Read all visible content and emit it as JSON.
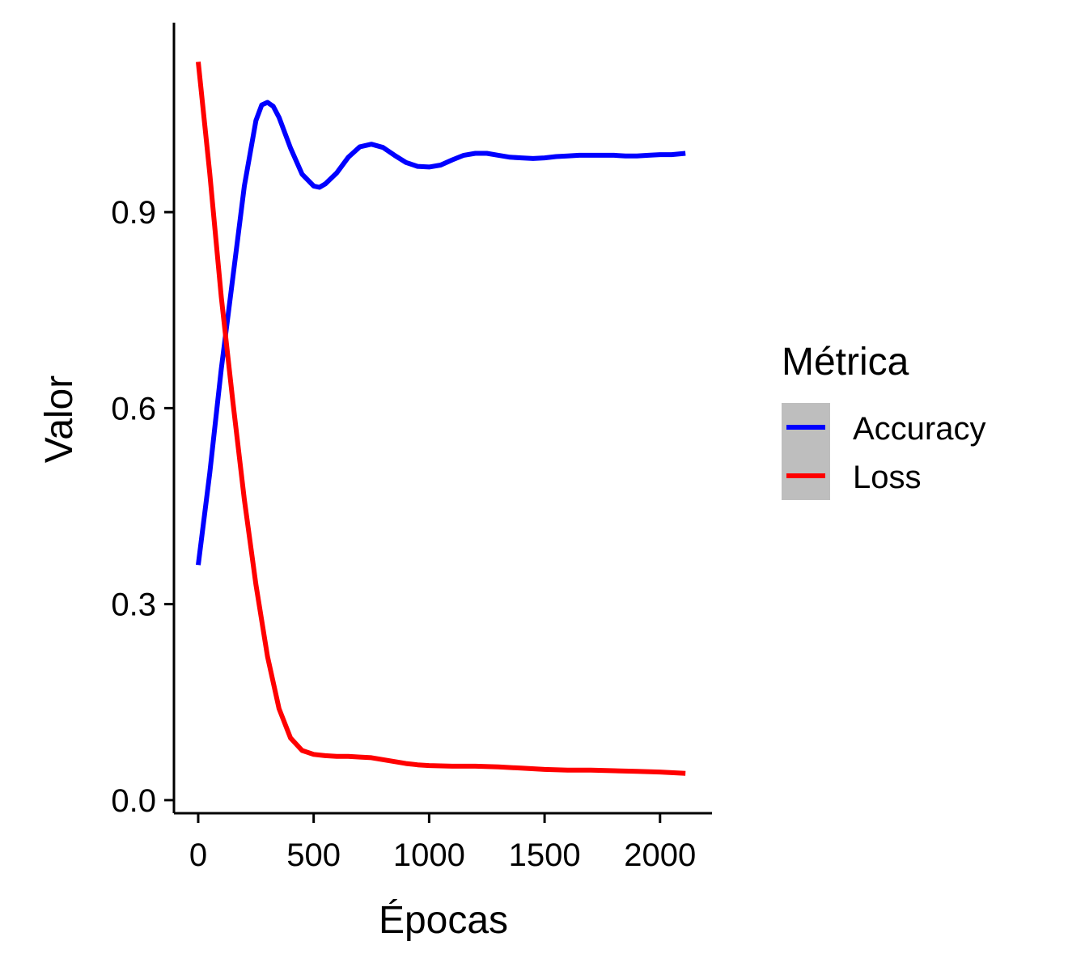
{
  "chart_data": {
    "type": "line",
    "title": "",
    "xlabel": "Épocas",
    "ylabel": "Valor",
    "xlim": [
      -105,
      2225
    ],
    "ylim": [
      -0.02,
      1.19
    ],
    "x_ticks": [
      0,
      500,
      1000,
      1500,
      2000
    ],
    "x_tick_labels": [
      "0",
      "500",
      "1000",
      "1500",
      "2000"
    ],
    "y_ticks": [
      0.0,
      0.3,
      0.6,
      0.9
    ],
    "y_tick_labels": [
      "0.0",
      "0.3",
      "0.6",
      "0.9"
    ],
    "grid": false,
    "legend": {
      "title": "Métrica",
      "position": "right"
    },
    "series": [
      {
        "name": "Accuracy",
        "color": "#0000ff",
        "points": [
          [
            0,
            0.36
          ],
          [
            50,
            0.5
          ],
          [
            100,
            0.66
          ],
          [
            150,
            0.8
          ],
          [
            200,
            0.94
          ],
          [
            250,
            1.04
          ],
          [
            275,
            1.064
          ],
          [
            300,
            1.068
          ],
          [
            325,
            1.062
          ],
          [
            350,
            1.045
          ],
          [
            400,
            0.998
          ],
          [
            450,
            0.958
          ],
          [
            500,
            0.94
          ],
          [
            525,
            0.938
          ],
          [
            550,
            0.943
          ],
          [
            600,
            0.96
          ],
          [
            650,
            0.984
          ],
          [
            700,
            1.0
          ],
          [
            750,
            1.004
          ],
          [
            800,
            0.999
          ],
          [
            850,
            0.987
          ],
          [
            900,
            0.976
          ],
          [
            950,
            0.97
          ],
          [
            1000,
            0.969
          ],
          [
            1050,
            0.972
          ],
          [
            1100,
            0.98
          ],
          [
            1150,
            0.987
          ],
          [
            1200,
            0.99
          ],
          [
            1250,
            0.99
          ],
          [
            1300,
            0.987
          ],
          [
            1350,
            0.984
          ],
          [
            1400,
            0.983
          ],
          [
            1450,
            0.982
          ],
          [
            1500,
            0.983
          ],
          [
            1550,
            0.985
          ],
          [
            1600,
            0.986
          ],
          [
            1650,
            0.987
          ],
          [
            1700,
            0.987
          ],
          [
            1750,
            0.987
          ],
          [
            1800,
            0.987
          ],
          [
            1850,
            0.986
          ],
          [
            1900,
            0.986
          ],
          [
            1950,
            0.987
          ],
          [
            2000,
            0.988
          ],
          [
            2050,
            0.988
          ],
          [
            2110,
            0.99
          ]
        ]
      },
      {
        "name": "Loss",
        "color": "#ff0000",
        "points": [
          [
            0,
            1.13
          ],
          [
            50,
            0.96
          ],
          [
            100,
            0.77
          ],
          [
            150,
            0.61
          ],
          [
            200,
            0.46
          ],
          [
            250,
            0.33
          ],
          [
            300,
            0.22
          ],
          [
            350,
            0.14
          ],
          [
            400,
            0.095
          ],
          [
            450,
            0.076
          ],
          [
            500,
            0.07
          ],
          [
            550,
            0.068
          ],
          [
            600,
            0.067
          ],
          [
            650,
            0.067
          ],
          [
            700,
            0.066
          ],
          [
            750,
            0.065
          ],
          [
            800,
            0.062
          ],
          [
            850,
            0.059
          ],
          [
            900,
            0.056
          ],
          [
            950,
            0.054
          ],
          [
            1000,
            0.053
          ],
          [
            1100,
            0.052
          ],
          [
            1200,
            0.052
          ],
          [
            1300,
            0.051
          ],
          [
            1400,
            0.049
          ],
          [
            1500,
            0.047
          ],
          [
            1600,
            0.046
          ],
          [
            1700,
            0.046
          ],
          [
            1800,
            0.045
          ],
          [
            1900,
            0.044
          ],
          [
            2000,
            0.043
          ],
          [
            2110,
            0.041
          ]
        ]
      }
    ]
  }
}
